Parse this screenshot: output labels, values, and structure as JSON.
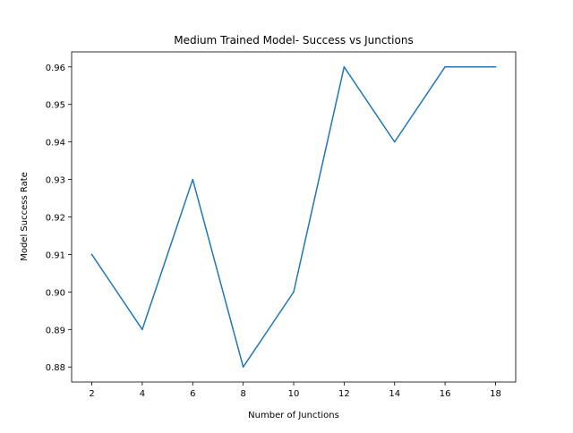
{
  "chart_data": {
    "type": "line",
    "title": "Medium Trained Model- Success vs Junctions",
    "xlabel": "Number of Junctions",
    "ylabel": "Model Success Rate",
    "x": [
      2,
      4,
      6,
      8,
      10,
      12,
      14,
      16,
      18
    ],
    "series": [
      {
        "values": [
          0.91,
          0.89,
          0.93,
          0.88,
          0.9,
          0.96,
          0.94,
          0.96,
          0.96
        ]
      }
    ],
    "xticks": [
      2,
      4,
      6,
      8,
      10,
      12,
      14,
      16,
      18
    ],
    "xtick_labels": [
      "2",
      "4",
      "6",
      "8",
      "10",
      "12",
      "14",
      "16",
      "18"
    ],
    "yticks": [
      0.88,
      0.89,
      0.9,
      0.91,
      0.92,
      0.93,
      0.94,
      0.95,
      0.96
    ],
    "ytick_labels": [
      "0.88",
      "0.89",
      "0.90",
      "0.91",
      "0.92",
      "0.93",
      "0.94",
      "0.95",
      "0.96"
    ],
    "xlim": [
      1.2,
      18.8
    ],
    "ylim": [
      0.876,
      0.964
    ],
    "grid": false,
    "line_color": "#1f77b4"
  }
}
